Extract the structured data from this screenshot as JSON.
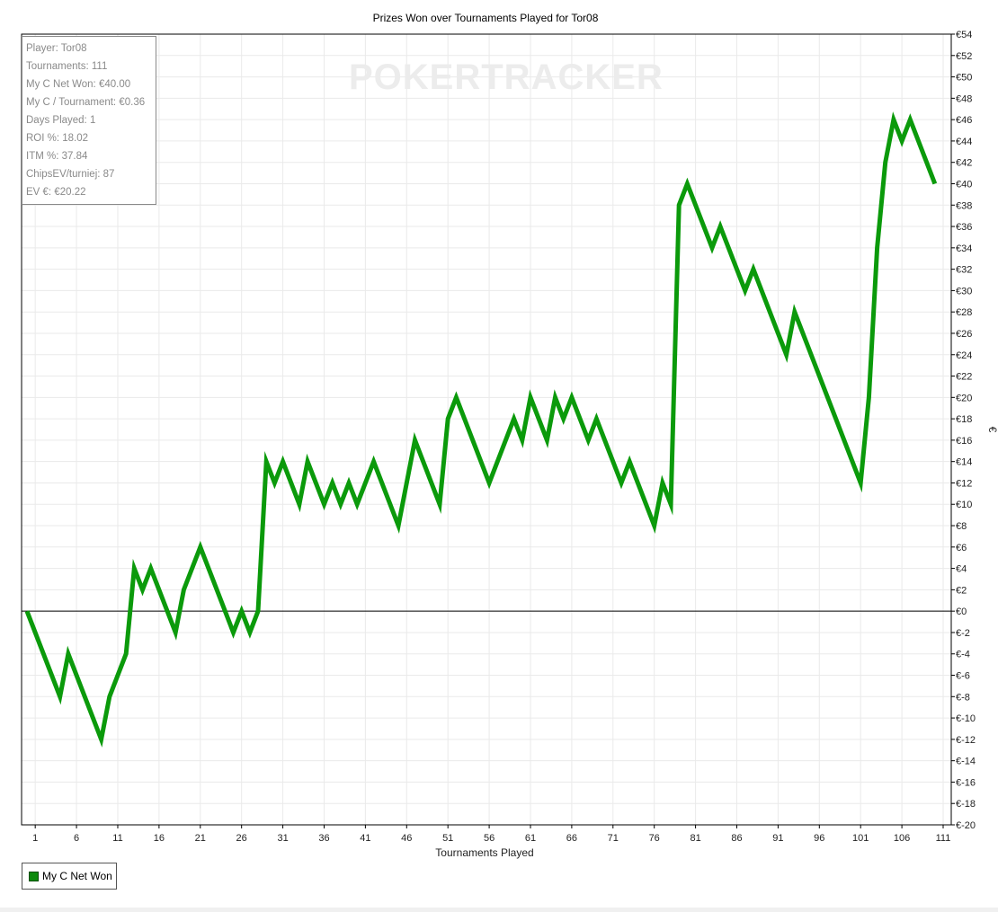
{
  "watermark": "POKERTRACKER",
  "stats": [
    "Player: Tor08",
    "Tournaments: 111",
    "My C Net Won: €40.00",
    "My C / Tournament: €0.36",
    "Days Played: 1",
    "ROI %: 18.02",
    "ITM %: 37.84",
    "ChipsEV/turniej: 87",
    "EV €: €20.22"
  ],
  "legend": {
    "label": "My C Net Won",
    "color": "#0b9a0b"
  },
  "chart_data": {
    "type": "line",
    "title": "Prizes Won over Tournaments Played for Tor08",
    "xlabel": "Tournaments Played",
    "ylabel": "€",
    "xlim": [
      0,
      111
    ],
    "ylim": [
      -20,
      54
    ],
    "xticks": [
      1,
      6,
      11,
      16,
      21,
      26,
      31,
      36,
      41,
      46,
      51,
      56,
      61,
      66,
      71,
      76,
      81,
      86,
      91,
      96,
      101,
      106,
      111
    ],
    "yticks": [
      -20,
      -18,
      -16,
      -14,
      -12,
      -10,
      -8,
      -6,
      -4,
      -2,
      0,
      2,
      4,
      6,
      8,
      10,
      12,
      14,
      16,
      18,
      20,
      22,
      24,
      26,
      28,
      30,
      32,
      34,
      36,
      38,
      40,
      42,
      44,
      46,
      48,
      50,
      52,
      54
    ],
    "ytick_labels": [
      "€-20",
      "€-18",
      "€-16",
      "€-14",
      "€-12",
      "€-10",
      "€-8",
      "€-6",
      "€-4",
      "€-2",
      "€0",
      "€2",
      "€4",
      "€6",
      "€8",
      "€10",
      "€12",
      "€14",
      "€16",
      "€18",
      "€20",
      "€22",
      "€24",
      "€26",
      "€28",
      "€30",
      "€32",
      "€34",
      "€36",
      "€38",
      "€40",
      "€42",
      "€44",
      "€46",
      "€48",
      "€50",
      "€52",
      "€54"
    ],
    "grid": true,
    "legend_position": "bottom-left",
    "series": [
      {
        "name": "My C Net Won",
        "color": "#0b9a0b",
        "points": [
          [
            0,
            0
          ],
          [
            4,
            -8
          ],
          [
            5,
            -4
          ],
          [
            9,
            -12
          ],
          [
            10,
            -8
          ],
          [
            12,
            -4
          ],
          [
            13,
            4
          ],
          [
            14,
            2
          ],
          [
            15,
            4
          ],
          [
            18,
            -2
          ],
          [
            19,
            2
          ],
          [
            21,
            6
          ],
          [
            25,
            -2
          ],
          [
            26,
            0
          ],
          [
            27,
            -2
          ],
          [
            28,
            0
          ],
          [
            29,
            14
          ],
          [
            30,
            12
          ],
          [
            31,
            14
          ],
          [
            33,
            10
          ],
          [
            34,
            14
          ],
          [
            36,
            10
          ],
          [
            37,
            12
          ],
          [
            38,
            10
          ],
          [
            39,
            12
          ],
          [
            40,
            10
          ],
          [
            42,
            14
          ],
          [
            45,
            8
          ],
          [
            47,
            16
          ],
          [
            50,
            10
          ],
          [
            51,
            18
          ],
          [
            52,
            20
          ],
          [
            56,
            12
          ],
          [
            59,
            18
          ],
          [
            60,
            16
          ],
          [
            61,
            20
          ],
          [
            63,
            16
          ],
          [
            64,
            20
          ],
          [
            65,
            18
          ],
          [
            66,
            20
          ],
          [
            68,
            16
          ],
          [
            69,
            18
          ],
          [
            72,
            12
          ],
          [
            73,
            14
          ],
          [
            76,
            8
          ],
          [
            77,
            12
          ],
          [
            78,
            10
          ],
          [
            79,
            38
          ],
          [
            80,
            40
          ],
          [
            83,
            34
          ],
          [
            84,
            36
          ],
          [
            87,
            30
          ],
          [
            88,
            32
          ],
          [
            92,
            24
          ],
          [
            93,
            28
          ],
          [
            101,
            12
          ],
          [
            102,
            20
          ],
          [
            103,
            34
          ],
          [
            104,
            42
          ],
          [
            105,
            46
          ],
          [
            106,
            44
          ],
          [
            107,
            46
          ],
          [
            110,
            40
          ]
        ]
      }
    ]
  }
}
